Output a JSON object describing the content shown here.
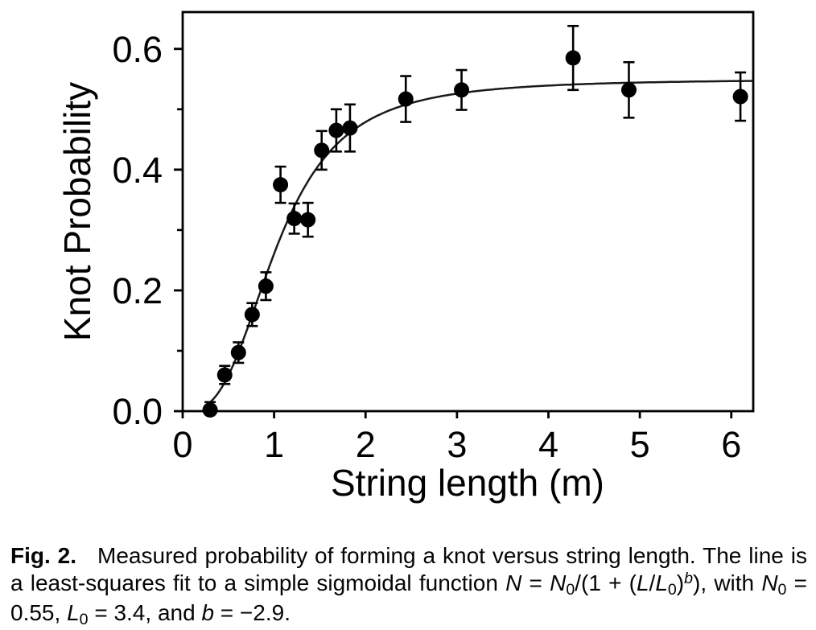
{
  "chart_data": {
    "type": "scatter",
    "title": "",
    "xlabel": "String length (m)",
    "ylabel": "Knot Probability",
    "xlim": [
      0,
      6.24
    ],
    "ylim": [
      0,
      0.661
    ],
    "x_ticks": [
      0,
      1,
      2,
      3,
      4,
      5,
      6
    ],
    "y_major_ticks": [
      0.0,
      0.2,
      0.4,
      0.6
    ],
    "y_tick_labels": [
      "0.0",
      "0.2",
      "0.4",
      "0.6"
    ],
    "y_minor_ticks": [
      0.1,
      0.3,
      0.5
    ],
    "grid": false,
    "legend": null,
    "marker_color": "#000000",
    "line_color": "#1a1a1a",
    "points": [
      {
        "x": 0.3,
        "y": 0.002,
        "err": 0.013
      },
      {
        "x": 0.46,
        "y": 0.06,
        "err": 0.015
      },
      {
        "x": 0.61,
        "y": 0.097,
        "err": 0.017
      },
      {
        "x": 0.76,
        "y": 0.16,
        "err": 0.019
      },
      {
        "x": 0.91,
        "y": 0.207,
        "err": 0.023
      },
      {
        "x": 1.07,
        "y": 0.375,
        "err": 0.03
      },
      {
        "x": 1.22,
        "y": 0.319,
        "err": 0.025
      },
      {
        "x": 1.37,
        "y": 0.317,
        "err": 0.028
      },
      {
        "x": 1.52,
        "y": 0.432,
        "err": 0.032
      },
      {
        "x": 1.68,
        "y": 0.465,
        "err": 0.035
      },
      {
        "x": 1.83,
        "y": 0.469,
        "err": 0.039
      },
      {
        "x": 2.44,
        "y": 0.517,
        "err": 0.038
      },
      {
        "x": 3.05,
        "y": 0.532,
        "err": 0.033
      },
      {
        "x": 4.27,
        "y": 0.585,
        "err": 0.053
      },
      {
        "x": 4.88,
        "y": 0.532,
        "err": 0.046
      },
      {
        "x": 6.1,
        "y": 0.521,
        "err": 0.04
      }
    ],
    "fit": {
      "N0": 0.55,
      "L0": 3.4,
      "b": -2.9
    }
  },
  "caption": {
    "fig_label": "Fig. 2.",
    "t1": "Measured probability of forming a knot versus string length. The line is a least-squares fit to a simple sigmoidal function ",
    "vN": "N",
    "vL": "L",
    "vb": "b",
    "sub0": "0",
    "eq": " = ",
    "frac": "/(1 + (",
    "slash": "/",
    "close1": ")",
    "t2": "), with ",
    "t3": " = 0.55, ",
    "t4": " = 3.4, and ",
    "t5": " = −2.9."
  }
}
